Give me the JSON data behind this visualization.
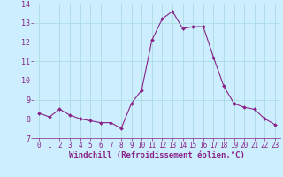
{
  "x": [
    0,
    1,
    2,
    3,
    4,
    5,
    6,
    7,
    8,
    9,
    10,
    11,
    12,
    13,
    14,
    15,
    16,
    17,
    18,
    19,
    20,
    21,
    22,
    23
  ],
  "y": [
    8.3,
    8.1,
    8.5,
    8.2,
    8.0,
    7.9,
    7.8,
    7.8,
    7.5,
    8.8,
    9.5,
    12.1,
    13.2,
    13.6,
    12.7,
    12.8,
    12.8,
    11.2,
    9.7,
    8.8,
    8.6,
    8.5,
    8.0,
    7.7
  ],
  "line_color": "#882288",
  "marker_color": "#882288",
  "bg_color": "#cceeff",
  "grid_color": "#aadddd",
  "xlabel": "Windchill (Refroidissement éolien,°C)",
  "xlabel_color": "#882288",
  "ylim": [
    7,
    14
  ],
  "xlim": [
    -0.5,
    23.5
  ],
  "yticks": [
    7,
    8,
    9,
    10,
    11,
    12,
    13,
    14
  ],
  "xticks": [
    0,
    1,
    2,
    3,
    4,
    5,
    6,
    7,
    8,
    9,
    10,
    11,
    12,
    13,
    14,
    15,
    16,
    17,
    18,
    19,
    20,
    21,
    22,
    23
  ],
  "tick_color": "#882288",
  "tick_fontsize": 5.5,
  "xlabel_fontsize": 6.5
}
